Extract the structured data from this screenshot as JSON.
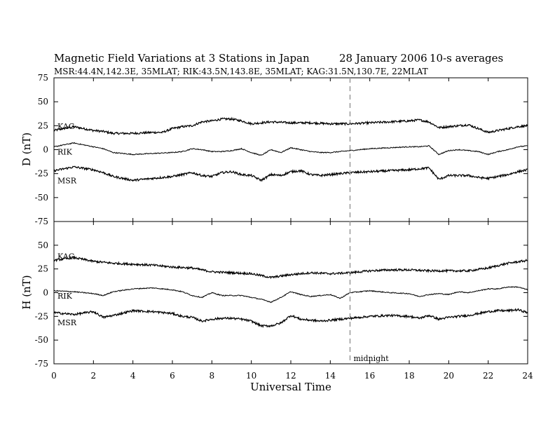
{
  "chart_data": {
    "type": "line",
    "title": "Magnetic Field Variations at 3 Stations in Japan",
    "date": "28 January 2006",
    "averaging": "10-s averages",
    "subtitle": "MSR:44.4N,142.3E, 35MLAT;   RIK:43.5N,143.8E, 35MLAT;   KAG:31.5N,130.7E, 22MLAT",
    "xlabel": "Universal Time",
    "xlim": [
      0,
      24
    ],
    "xticks": [
      0,
      2,
      4,
      6,
      8,
      10,
      12,
      14,
      16,
      18,
      20,
      22,
      24
    ],
    "annotation": {
      "label": "midnight",
      "x": 15,
      "style": "dashed vertical line"
    },
    "panels": [
      {
        "ylabel": "D (nT)",
        "ylim": [
          -75,
          75
        ],
        "yticks": [
          75,
          50,
          25,
          0,
          -25,
          -50,
          -75
        ],
        "series": [
          {
            "name": "KAG",
            "x": [
              0,
              1,
              2,
              2.5,
              3,
              4,
              5,
              5.5,
              6,
              6.5,
              7,
              7.5,
              8,
              8.5,
              9,
              9.5,
              10,
              11,
              12,
              13,
              14,
              15,
              16,
              17,
              18,
              18.5,
              19,
              19.5,
              20,
              20.5,
              21,
              21.5,
              22,
              22.5,
              23,
              23.5,
              24
            ],
            "y": [
              20,
              24,
              20,
              19,
              17,
              17,
              18,
              18,
              22,
              24,
              25,
              29,
              30,
              32,
              32,
              30,
              27,
              29,
              28,
              28,
              27,
              27,
              28,
              29,
              30,
              31,
              29,
              23,
              24,
              25,
              26,
              22,
              18,
              20,
              22,
              24,
              25
            ]
          },
          {
            "name": "RIK",
            "x": [
              0,
              1,
              2,
              2.5,
              3,
              4,
              5,
              6,
              6.5,
              7,
              7.5,
              8,
              8.5,
              9,
              9.5,
              10,
              10.5,
              11,
              11.5,
              12,
              12.5,
              13,
              13.5,
              14,
              15,
              16,
              17,
              18,
              18.5,
              19,
              19.5,
              20,
              20.5,
              21,
              21.5,
              22,
              22.5,
              23,
              23.5,
              24
            ],
            "y": [
              3,
              7,
              3,
              1,
              -3,
              -5,
              -4,
              -3,
              -2,
              1,
              0,
              -2,
              -2,
              -1,
              1,
              -3,
              -6,
              0,
              -3,
              2,
              0,
              -2,
              -3,
              -3,
              -1,
              1,
              2,
              3,
              3,
              4,
              -5,
              -1,
              0,
              -1,
              -2,
              -5,
              -2,
              0,
              3,
              4
            ]
          },
          {
            "name": "MSR",
            "x": [
              0,
              1,
              2,
              2.5,
              3,
              4,
              5,
              6,
              6.5,
              7,
              7.5,
              8,
              8.5,
              9,
              9.5,
              10,
              10.5,
              11,
              11.5,
              12,
              12.5,
              13,
              13.5,
              14,
              15,
              16,
              17,
              18,
              18.5,
              19,
              19.5,
              20,
              20.5,
              21,
              21.5,
              22,
              22.5,
              23,
              23.5,
              24
            ],
            "y": [
              -22,
              -18,
              -21,
              -24,
              -28,
              -32,
              -30,
              -28,
              -26,
              -24,
              -27,
              -28,
              -24,
              -23,
              -26,
              -27,
              -32,
              -26,
              -27,
              -23,
              -22,
              -26,
              -27,
              -26,
              -24,
              -23,
              -22,
              -21,
              -20,
              -19,
              -31,
              -27,
              -27,
              -27,
              -29,
              -30,
              -28,
              -26,
              -23,
              -21
            ]
          }
        ]
      },
      {
        "ylabel": "H (nT)",
        "ylim": [
          -75,
          75
        ],
        "yticks": [
          75,
          50,
          25,
          0,
          -25,
          -50,
          -75
        ],
        "series": [
          {
            "name": "KAG",
            "x": [
              0,
              1,
              2,
              3,
              4,
              5,
              6,
              7,
              8,
              9,
              10,
              11,
              12,
              13,
              14,
              15,
              16,
              17,
              18,
              19,
              20,
              21,
              22,
              23,
              24
            ],
            "y": [
              34,
              37,
              33,
              31,
              30,
              29,
              27,
              26,
              22,
              21,
              20,
              16,
              19,
              21,
              20,
              21,
              23,
              24,
              24,
              23,
              23,
              23,
              26,
              31,
              34
            ]
          },
          {
            "name": "RIK",
            "x": [
              0,
              1,
              2,
              2.5,
              3,
              4,
              5,
              6,
              6.5,
              7,
              7.5,
              8,
              8.5,
              9,
              9.5,
              10,
              10.5,
              11,
              11.5,
              12,
              12.5,
              13,
              13.5,
              14,
              14.5,
              15,
              16,
              17,
              18,
              18.5,
              19,
              19.5,
              20,
              20.5,
              21,
              21.5,
              22,
              22.5,
              23,
              23.5,
              24
            ],
            "y": [
              2,
              1,
              -1,
              -3,
              1,
              4,
              5,
              3,
              1,
              -3,
              -5,
              0,
              -3,
              -3,
              -3,
              -5,
              -7,
              -10,
              -5,
              1,
              -2,
              -4,
              -3,
              -2,
              -6,
              0,
              2,
              0,
              -1,
              -4,
              -2,
              -1,
              -2,
              1,
              0,
              2,
              4,
              4,
              6,
              6,
              3
            ]
          },
          {
            "name": "MSR",
            "x": [
              0,
              1,
              2,
              2.5,
              3,
              4,
              5,
              6,
              6.5,
              7,
              7.5,
              8,
              8.5,
              9,
              9.5,
              10,
              10.5,
              11,
              11.5,
              12,
              12.5,
              13,
              13.5,
              14,
              15,
              16,
              17,
              18,
              18.5,
              19,
              19.5,
              20,
              20.5,
              21,
              21.5,
              22,
              22.5,
              23,
              23.5,
              24
            ],
            "y": [
              -21,
              -23,
              -20,
              -26,
              -24,
              -19,
              -20,
              -22,
              -25,
              -26,
              -30,
              -28,
              -27,
              -27,
              -28,
              -30,
              -35,
              -35,
              -32,
              -24,
              -28,
              -29,
              -30,
              -29,
              -27,
              -25,
              -24,
              -25,
              -27,
              -24,
              -28,
              -26,
              -25,
              -24,
              -22,
              -20,
              -19,
              -19,
              -18,
              -21
            ]
          }
        ]
      }
    ]
  }
}
